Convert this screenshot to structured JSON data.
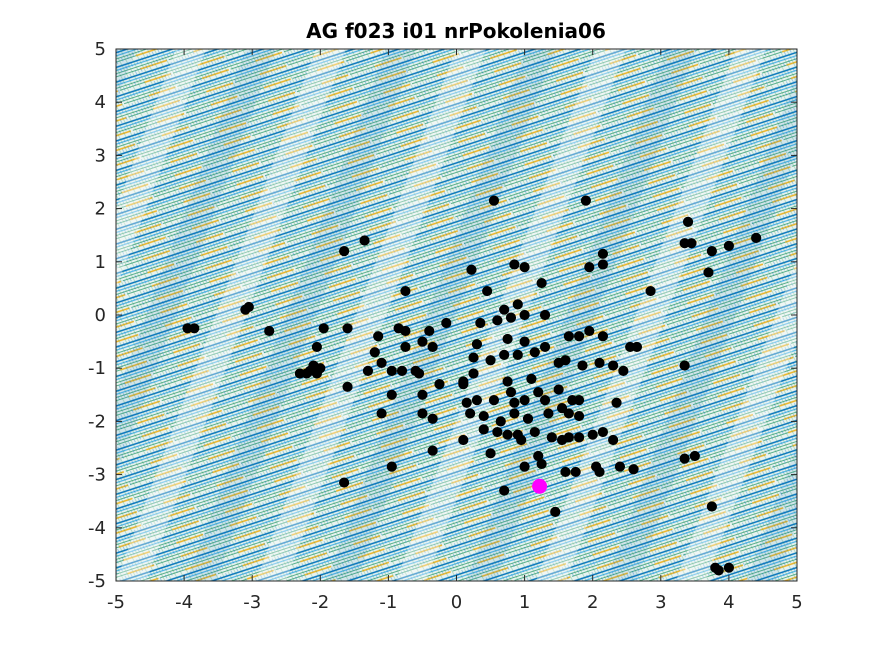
{
  "chart_data": {
    "type": "scatter",
    "title": "AG f023 i01 nrPokolenia06",
    "xlabel": "",
    "ylabel": "",
    "xlim": [
      -5,
      5
    ],
    "ylim": [
      -5,
      5
    ],
    "xticks": [
      -5,
      -4,
      -3,
      -2,
      -1,
      0,
      1,
      2,
      3,
      4,
      5
    ],
    "yticks": [
      5,
      4,
      3,
      2,
      1,
      0,
      -1,
      -2,
      -3,
      -4,
      -5
    ],
    "xtick_labels": [
      "-5",
      "-4",
      "-3",
      "-2",
      "-1",
      "0",
      "1",
      "2",
      "3",
      "4",
      "5"
    ],
    "ytick_labels": [
      "5",
      "4",
      "3",
      "2",
      "1",
      "0",
      "-1",
      "-2",
      "-3",
      "-4",
      "-5"
    ],
    "grid": false,
    "legend": "none",
    "background": "contour plot of objective function (diagonal bands)",
    "contour_colors": [
      "#0072bd",
      "#4db3e6",
      "#edb120",
      "#2a9a6a"
    ],
    "series": [
      {
        "marker_color": "#000000",
        "points": [
          [
            0.55,
            2.15
          ],
          [
            1.9,
            2.15
          ],
          [
            -1.35,
            1.4
          ],
          [
            -1.65,
            1.2
          ],
          [
            0.22,
            0.85
          ],
          [
            0.85,
            0.95
          ],
          [
            1.0,
            0.9
          ],
          [
            1.95,
            0.9
          ],
          [
            2.15,
            1.15
          ],
          [
            2.15,
            0.95
          ],
          [
            3.4,
            1.75
          ],
          [
            3.35,
            1.35
          ],
          [
            3.45,
            1.35
          ],
          [
            3.75,
            1.2
          ],
          [
            4.0,
            1.3
          ],
          [
            4.4,
            1.45
          ],
          [
            3.7,
            0.8
          ],
          [
            1.25,
            0.6
          ],
          [
            0.45,
            0.45
          ],
          [
            -0.75,
            0.45
          ],
          [
            2.85,
            0.45
          ],
          [
            -3.05,
            0.15
          ],
          [
            -3.1,
            0.1
          ],
          [
            0.9,
            0.2
          ],
          [
            0.7,
            0.1
          ],
          [
            -3.95,
            -0.25
          ],
          [
            -3.85,
            -0.25
          ],
          [
            -2.75,
            -0.3
          ],
          [
            -1.95,
            -0.25
          ],
          [
            -1.6,
            -0.25
          ],
          [
            -0.85,
            -0.25
          ],
          [
            -0.75,
            -0.3
          ],
          [
            -0.4,
            -0.3
          ],
          [
            -0.15,
            -0.15
          ],
          [
            0.35,
            -0.15
          ],
          [
            0.6,
            -0.1
          ],
          [
            0.8,
            -0.05
          ],
          [
            1.0,
            0.0
          ],
          [
            1.3,
            0.0
          ],
          [
            -1.15,
            -0.4
          ],
          [
            -2.05,
            -0.6
          ],
          [
            -0.75,
            -0.6
          ],
          [
            -0.5,
            -0.5
          ],
          [
            -0.35,
            -0.6
          ],
          [
            0.3,
            -0.55
          ],
          [
            0.75,
            -0.45
          ],
          [
            1.0,
            -0.5
          ],
          [
            1.3,
            -0.6
          ],
          [
            1.65,
            -0.4
          ],
          [
            1.8,
            -0.4
          ],
          [
            1.95,
            -0.3
          ],
          [
            2.15,
            -0.4
          ],
          [
            2.55,
            -0.6
          ],
          [
            2.65,
            -0.6
          ],
          [
            -1.2,
            -0.7
          ],
          [
            -1.1,
            -0.9
          ],
          [
            -2.1,
            -0.95
          ],
          [
            -2.3,
            -1.1
          ],
          [
            -2.0,
            -1.0
          ],
          [
            -2.15,
            -1.05
          ],
          [
            -2.05,
            -1.1
          ],
          [
            -2.2,
            -1.1
          ],
          [
            -1.6,
            -1.35
          ],
          [
            -1.3,
            -1.05
          ],
          [
            -0.95,
            -1.05
          ],
          [
            -0.8,
            -1.05
          ],
          [
            -0.6,
            -1.05
          ],
          [
            -0.55,
            -1.1
          ],
          [
            -0.25,
            -1.3
          ],
          [
            0.1,
            -1.25
          ],
          [
            0.25,
            -1.1
          ],
          [
            0.25,
            -0.8
          ],
          [
            0.5,
            -0.85
          ],
          [
            0.7,
            -0.75
          ],
          [
            0.9,
            -0.75
          ],
          [
            1.15,
            -0.7
          ],
          [
            1.5,
            -0.9
          ],
          [
            1.6,
            -0.85
          ],
          [
            1.85,
            -0.95
          ],
          [
            2.1,
            -0.9
          ],
          [
            2.3,
            -0.95
          ],
          [
            2.45,
            -1.05
          ],
          [
            3.35,
            -0.95
          ],
          [
            -0.95,
            -1.5
          ],
          [
            -0.5,
            -1.5
          ],
          [
            -1.1,
            -1.85
          ],
          [
            -0.5,
            -1.85
          ],
          [
            -0.35,
            -1.95
          ],
          [
            0.1,
            -1.3
          ],
          [
            0.15,
            -1.65
          ],
          [
            0.3,
            -1.6
          ],
          [
            0.55,
            -1.6
          ],
          [
            0.75,
            -1.25
          ],
          [
            0.8,
            -1.45
          ],
          [
            0.85,
            -1.65
          ],
          [
            1.0,
            -1.6
          ],
          [
            1.1,
            -1.2
          ],
          [
            1.2,
            -1.45
          ],
          [
            1.3,
            -1.6
          ],
          [
            1.5,
            -1.4
          ],
          [
            1.7,
            -1.6
          ],
          [
            1.8,
            -1.6
          ],
          [
            0.2,
            -1.85
          ],
          [
            0.4,
            -1.9
          ],
          [
            0.65,
            -2.0
          ],
          [
            0.85,
            -1.85
          ],
          [
            1.05,
            -1.95
          ],
          [
            1.35,
            -1.85
          ],
          [
            1.55,
            -1.75
          ],
          [
            1.65,
            -1.85
          ],
          [
            1.8,
            -1.9
          ],
          [
            2.35,
            -1.65
          ],
          [
            0.1,
            -2.35
          ],
          [
            0.4,
            -2.15
          ],
          [
            0.6,
            -2.2
          ],
          [
            0.75,
            -2.25
          ],
          [
            0.9,
            -2.25
          ],
          [
            0.95,
            -2.35
          ],
          [
            1.15,
            -2.2
          ],
          [
            1.4,
            -2.3
          ],
          [
            1.55,
            -2.35
          ],
          [
            1.65,
            -2.3
          ],
          [
            1.8,
            -2.3
          ],
          [
            2.0,
            -2.25
          ],
          [
            2.15,
            -2.2
          ],
          [
            2.3,
            -2.35
          ],
          [
            0.5,
            -2.6
          ],
          [
            -0.35,
            -2.55
          ],
          [
            1.0,
            -2.85
          ],
          [
            1.2,
            -2.65
          ],
          [
            1.25,
            -2.8
          ],
          [
            1.6,
            -2.95
          ],
          [
            1.75,
            -2.95
          ],
          [
            2.05,
            -2.85
          ],
          [
            2.1,
            -2.95
          ],
          [
            2.4,
            -2.85
          ],
          [
            2.6,
            -2.9
          ],
          [
            3.35,
            -2.7
          ],
          [
            3.5,
            -2.65
          ],
          [
            -0.95,
            -2.85
          ],
          [
            -1.65,
            -3.15
          ],
          [
            0.7,
            -3.3
          ],
          [
            1.45,
            -3.7
          ],
          [
            3.75,
            -3.6
          ],
          [
            3.8,
            -4.75
          ],
          [
            3.85,
            -4.8
          ],
          [
            4.0,
            -4.75
          ]
        ]
      },
      {
        "marker_color": "#ff00ff",
        "points": [
          [
            1.22,
            -3.22
          ]
        ]
      }
    ]
  }
}
